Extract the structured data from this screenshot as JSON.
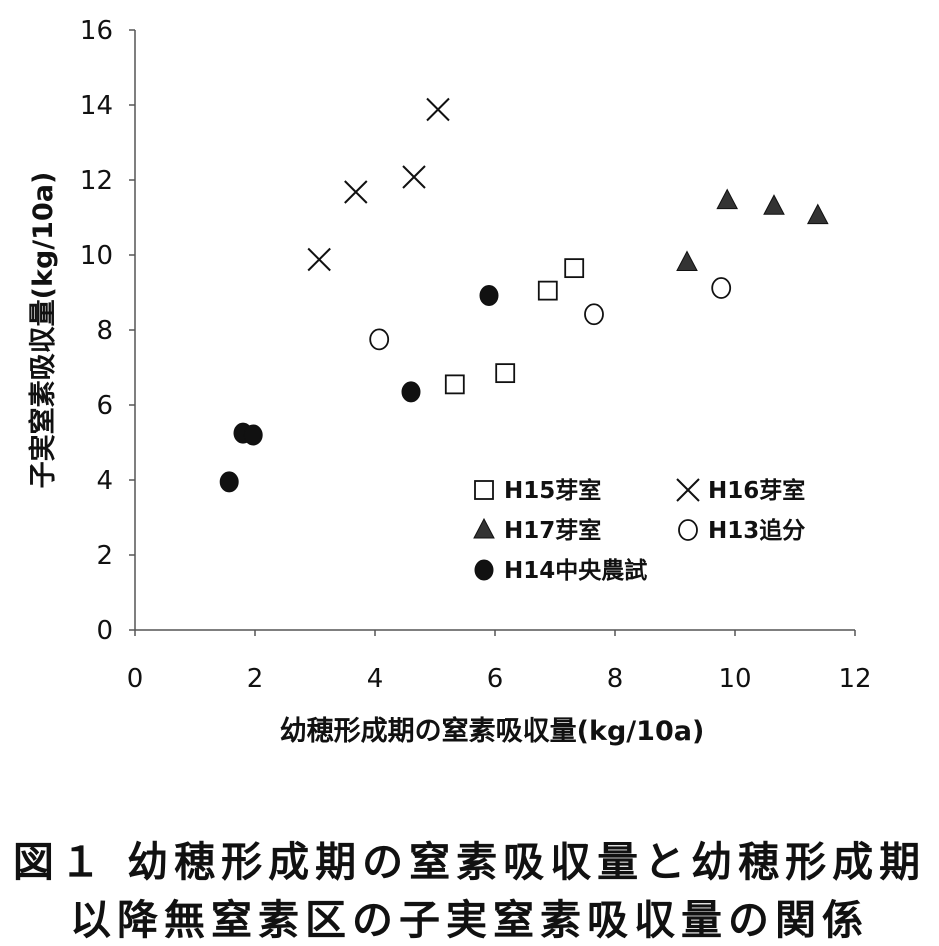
{
  "chart_data": {
    "type": "scatter",
    "xlabel": "幼穂形成期の窒素吸収量(kg/10a)",
    "ylabel": "子実窒素吸収量(kg/10a)",
    "xlim": [
      0,
      12
    ],
    "ylim": [
      0,
      16
    ],
    "xticks": [
      0,
      2,
      4,
      6,
      8,
      10,
      12
    ],
    "yticks": [
      0,
      2,
      4,
      6,
      8,
      10,
      12,
      14,
      16
    ],
    "grid": false,
    "legend_placement": "lower-right",
    "series": [
      {
        "name": "H15芽室",
        "marker": "open-square",
        "x": [
          5.33,
          6.17,
          6.88,
          7.32
        ],
        "y": [
          6.55,
          6.85,
          9.05,
          9.65
        ]
      },
      {
        "name": "H16芽室",
        "marker": "cross",
        "x": [
          3.07,
          3.68,
          4.65,
          5.05
        ],
        "y": [
          9.88,
          11.68,
          12.08,
          13.88
        ]
      },
      {
        "name": "H17芽室",
        "marker": "filled-triangle",
        "x": [
          9.2,
          9.87,
          10.65,
          11.38
        ],
        "y": [
          9.8,
          11.45,
          11.3,
          11.05
        ]
      },
      {
        "name": "H13追分",
        "marker": "open-circle",
        "x": [
          4.07,
          7.65,
          9.77
        ],
        "y": [
          7.75,
          8.42,
          9.12
        ]
      },
      {
        "name": "H14中央農試",
        "marker": "filled-circle",
        "x": [
          1.57,
          1.8,
          1.97,
          4.6,
          5.9
        ],
        "y": [
          3.95,
          5.25,
          5.2,
          6.35,
          8.92
        ]
      }
    ]
  },
  "caption": {
    "line1": "図１ 幼穂形成期の窒素吸収量と幼穂形成期",
    "line2": "以降無窒素区の子実窒素吸収量の関係"
  },
  "colors": {
    "ink": "#111111",
    "filled": "#333333",
    "axis": "#555555"
  }
}
